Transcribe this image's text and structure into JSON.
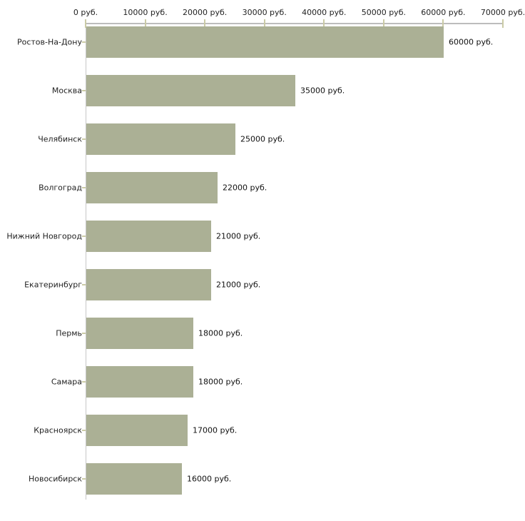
{
  "chart_data": {
    "type": "bar",
    "orientation": "horizontal",
    "title": "",
    "xlabel": "",
    "ylabel": "",
    "xlim": [
      0,
      70000
    ],
    "grid": false,
    "legend": null,
    "categories": [
      "Ростов-На-Дону",
      "Москва",
      "Челябинск",
      "Волгоград",
      "Нижний Новгород",
      "Екатеринбург",
      "Пермь",
      "Самара",
      "Красноярск",
      "Новосибирск"
    ],
    "values": [
      60000,
      35000,
      25000,
      22000,
      21000,
      21000,
      18000,
      18000,
      17000,
      16000
    ],
    "value_labels": [
      "60000 руб.",
      "35000 руб.",
      "25000 руб.",
      "22000 руб.",
      "21000 руб.",
      "21000 руб.",
      "18000 руб.",
      "18000 руб.",
      "17000 руб.",
      "16000 руб."
    ],
    "x_axis": {
      "position": "top",
      "ticks": [
        0,
        10000,
        20000,
        30000,
        40000,
        50000,
        60000,
        70000
      ],
      "tick_labels": [
        "0 руб.",
        "10000 руб.",
        "20000 руб.",
        "30000 руб.",
        "40000 руб.",
        "50000 руб.",
        "60000 руб.",
        "70000 руб."
      ]
    },
    "colors": {
      "bar": "#abb095",
      "axis_line": "#bcbcbc",
      "vertical_axis_line": "#c6c6c6",
      "tick": "#cbcba6",
      "text": "#222222",
      "background": "#ffffff"
    }
  }
}
